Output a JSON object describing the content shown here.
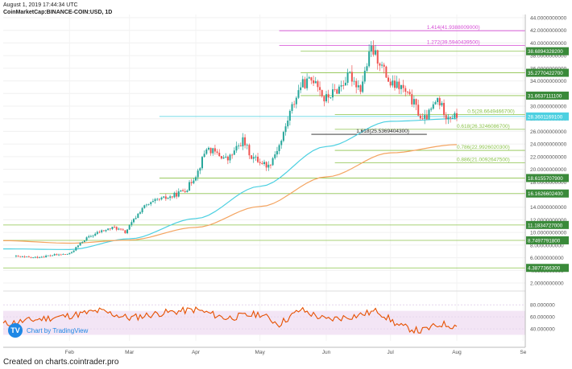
{
  "header": {
    "datetime": "August 1, 2019 17:44:34 UTC",
    "symbol": "CoinMarketCap:BINANCE-COIN:USD, 1D"
  },
  "footer": {
    "text": "Created on charts.cointrader.pro"
  },
  "badge": {
    "icon": "tradingview-logo-icon",
    "label": "Chart by TradingView"
  },
  "colors": {
    "price_up": "#26a69a",
    "price_down": "#ef5350",
    "ma_short": "#4dd0e1",
    "ma_long": "#f4a460",
    "rsi_line": "#e65100",
    "rsi_band": "#f3e5f5",
    "fib_extension": "#d54ad5",
    "fib_retracement": "#8bc34a",
    "support": "#8bc34a",
    "current_price": "#4dd0e1"
  },
  "chart_data": [
    {
      "type": "candlestick",
      "title": "",
      "x_axis": {
        "labels": [
          "Feb",
          "Mar",
          "Apr",
          "May",
          "Jun",
          "Jul",
          "Aug",
          "Se"
        ]
      },
      "y_axis": {
        "min": 2,
        "max": 44,
        "step": 2,
        "tick_labels": [
          "2.0000000000",
          "4.0000000000",
          "6.0000000000",
          "8.0000000000",
          "10.0000000000",
          "12.0000000000",
          "14.0000000000",
          "16.0000000000",
          "18.0000000000",
          "20.0000000000",
          "22.0000000000",
          "24.0000000000",
          "26.0000000000",
          "28.0000000000",
          "30.0000000000",
          "32.0000000000",
          "34.0000000000",
          "36.0000000000",
          "38.0000000000",
          "40.0000000000",
          "42.0000000000",
          "44.0000000000"
        ]
      },
      "price_keypoints": [
        {
          "date": "2019-01-06",
          "close": 6.2
        },
        {
          "date": "2019-01-15",
          "close": 6.0
        },
        {
          "date": "2019-01-24",
          "close": 6.4
        },
        {
          "date": "2019-02-01",
          "close": 6.6
        },
        {
          "date": "2019-02-08",
          "close": 8.9
        },
        {
          "date": "2019-02-15",
          "close": 10.1
        },
        {
          "date": "2019-02-22",
          "close": 10.8
        },
        {
          "date": "2019-02-27",
          "close": 10.0
        },
        {
          "date": "2019-03-07",
          "close": 13.9
        },
        {
          "date": "2019-03-14",
          "close": 15.1
        },
        {
          "date": "2019-03-21",
          "close": 15.7
        },
        {
          "date": "2019-03-28",
          "close": 17.0
        },
        {
          "date": "2019-04-02",
          "close": 19.7
        },
        {
          "date": "2019-04-06",
          "close": 23.4
        },
        {
          "date": "2019-04-11",
          "close": 22.4
        },
        {
          "date": "2019-04-16",
          "close": 21.5
        },
        {
          "date": "2019-04-23",
          "close": 24.6
        },
        {
          "date": "2019-04-27",
          "close": 22.0
        },
        {
          "date": "2019-05-05",
          "close": 20.5
        },
        {
          "date": "2019-05-11",
          "close": 24.5
        },
        {
          "date": "2019-05-15",
          "close": 29.0
        },
        {
          "date": "2019-05-20",
          "close": 33.3
        },
        {
          "date": "2019-05-27",
          "close": 34.4
        },
        {
          "date": "2019-05-31",
          "close": 31.0
        },
        {
          "date": "2019-06-06",
          "close": 32.6
        },
        {
          "date": "2019-06-12",
          "close": 34.9
        },
        {
          "date": "2019-06-17",
          "close": 32.8
        },
        {
          "date": "2019-06-22",
          "close": 39.1
        },
        {
          "date": "2019-06-26",
          "close": 37.0
        },
        {
          "date": "2019-07-01",
          "close": 33.4
        },
        {
          "date": "2019-07-06",
          "close": 33.0
        },
        {
          "date": "2019-07-12",
          "close": 30.4
        },
        {
          "date": "2019-07-16",
          "close": 27.6
        },
        {
          "date": "2019-07-19",
          "close": 28.8
        },
        {
          "date": "2019-07-23",
          "close": 31.1
        },
        {
          "date": "2019-07-27",
          "close": 28.6
        },
        {
          "date": "2019-08-01",
          "close": 28.3
        }
      ],
      "price_scale_labels": [
        {
          "value": 38.68943282,
          "text": "38.6894328200",
          "color": "#3a8a3a"
        },
        {
          "value": 35.27704227,
          "text": "35.2770422700",
          "color": "#3a8a3a"
        },
        {
          "value": 31.66371111,
          "text": "31.6637111100",
          "color": "#3a8a3a"
        },
        {
          "value": 28.36011691,
          "text": "28.3601169100",
          "color": "#4dd0e1"
        },
        {
          "value": 18.61557079,
          "text": "18.6155707900",
          "color": "#3a8a3a"
        },
        {
          "value": 16.16266024,
          "text": "16.1626602400",
          "color": "#3a8a3a"
        },
        {
          "value": 11.1834727,
          "text": "11.1834727000",
          "color": "#3a8a3a"
        },
        {
          "value": 8.74977918,
          "text": "8.7497791800",
          "color": "#3a8a3a"
        },
        {
          "value": 4.38773663,
          "text": "4.3877366300",
          "color": "#3a8a3a"
        }
      ],
      "fibonacci_extensions": [
        {
          "ratio": "1.414",
          "value": 41.9388009,
          "text": "1.414(41.9388009000)"
        },
        {
          "ratio": "1.272",
          "value": 39.59404395,
          "text": "1.272(39.5940439500)"
        },
        {
          "ratio": "1.618",
          "value": 25.53694043,
          "text": "1.618(25.5369404300)"
        }
      ],
      "fibonacci_retracements": [
        {
          "ratio": "0.5",
          "value": 28.66494667,
          "text": "0.5(28.6649466700)"
        },
        {
          "ratio": "0.618",
          "value": 26.32460867,
          "text": "0.618(26.3246086700)"
        },
        {
          "ratio": "0.786",
          "value": 22.99260203,
          "text": "0.786(22.9926020300)"
        },
        {
          "ratio": "0.886",
          "value": 21.00926475,
          "text": "0.886(21.0092647500)"
        }
      ],
      "moving_averages": [
        {
          "name": "",
          "color": "#4dd0e1",
          "points": [
            [
              "2019-01-01",
              7.4
            ],
            [
              "2019-02-01",
              7.3
            ],
            [
              "2019-03-01",
              9.0
            ],
            [
              "2019-04-01",
              12.2
            ],
            [
              "2019-05-01",
              17.3
            ],
            [
              "2019-06-01",
              23.6
            ],
            [
              "2019-07-01",
              27.6
            ],
            [
              "2019-08-01",
              28.0
            ]
          ]
        },
        {
          "name": "",
          "color": "#f4a460",
          "points": [
            [
              "2019-01-01",
              8.7
            ],
            [
              "2019-02-01",
              8.3
            ],
            [
              "2019-03-01",
              8.8
            ],
            [
              "2019-04-01",
              10.8
            ],
            [
              "2019-05-01",
              14.1
            ],
            [
              "2019-06-01",
              18.8
            ],
            [
              "2019-07-01",
              22.6
            ],
            [
              "2019-08-01",
              23.9
            ]
          ]
        }
      ]
    },
    {
      "type": "line",
      "title": "",
      "y_axis": {
        "tick_labels": [
          "40.000000",
          "60.000000",
          "80.000000"
        ],
        "ticks": [
          40,
          60,
          80
        ],
        "range": [
          20,
          95
        ]
      },
      "band": [
        30,
        70
      ],
      "series": [
        {
          "name": "",
          "points": [
            [
              "2019-01-01",
              48
            ],
            [
              "2019-01-15",
              55
            ],
            [
              "2019-02-01",
              62
            ],
            [
              "2019-02-15",
              70
            ],
            [
              "2019-03-01",
              58
            ],
            [
              "2019-03-15",
              66
            ],
            [
              "2019-04-01",
              72
            ],
            [
              "2019-04-15",
              58
            ],
            [
              "2019-05-01",
              65
            ],
            [
              "2019-05-10",
              48
            ],
            [
              "2019-05-20",
              72
            ],
            [
              "2019-06-01",
              55
            ],
            [
              "2019-06-15",
              62
            ],
            [
              "2019-06-25",
              70
            ],
            [
              "2019-07-05",
              45
            ],
            [
              "2019-07-15",
              36
            ],
            [
              "2019-07-25",
              48
            ],
            [
              "2019-08-01",
              44
            ]
          ]
        }
      ]
    }
  ]
}
